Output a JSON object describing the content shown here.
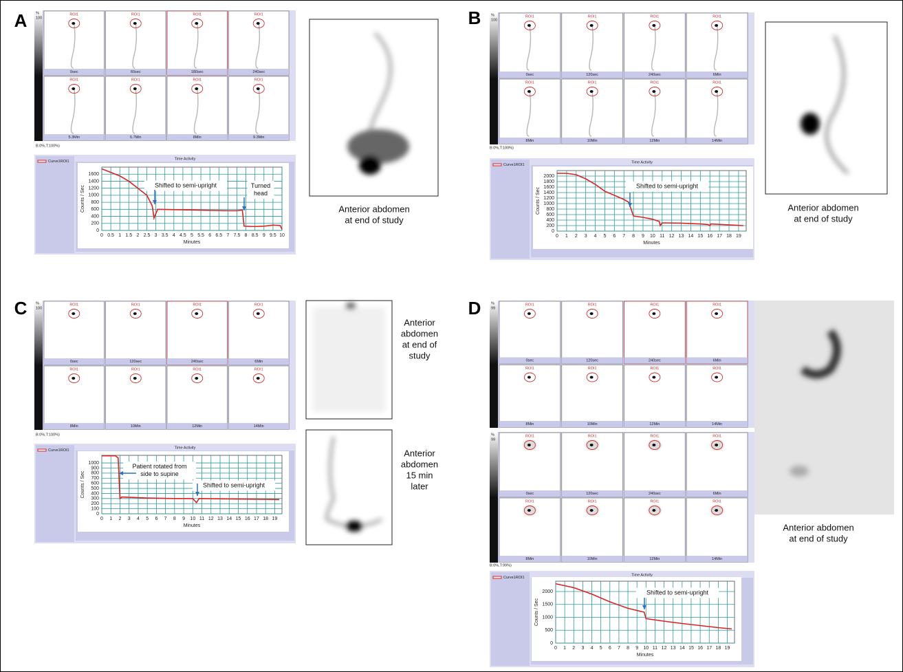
{
  "panels": [
    {
      "letter": "A",
      "roi_label": "ROI1",
      "status": "B:0%,T:100%)",
      "grids": [
        {
          "scale": [
            "%",
            "100",
            "0"
          ],
          "frame_labels": [
            "0sec",
            "60sec",
            "180sec",
            "240sec",
            "5.3Min",
            "6.7Min",
            "8Min",
            "9.3Min"
          ]
        }
      ],
      "captions": [
        [
          "Anterior abdomen",
          "at end of study"
        ]
      ]
    },
    {
      "letter": "B",
      "roi_label": "ROI1",
      "status": "B:0%,T:100%)",
      "grids": [
        {
          "scale": [
            "%",
            "100",
            "0"
          ],
          "frame_labels": [
            "0sec",
            "120sec",
            "240sec",
            "6Min",
            "8Min",
            "10Min",
            "12Min",
            "14Min"
          ]
        }
      ],
      "captions": [
        [
          "Anterior abdomen",
          "at end of study"
        ]
      ]
    },
    {
      "letter": "C",
      "roi_label": "ROI1",
      "status": "B:0%,T:100%)",
      "grids": [
        {
          "scale": [
            "%",
            "100",
            "0"
          ],
          "frame_labels": [
            "0sec",
            "120sec",
            "240sec",
            "6Min",
            "8Min",
            "10Min",
            "12Min",
            "14Min"
          ]
        }
      ],
      "captions": [
        [
          "Anterior",
          "abdomen",
          "at end of",
          "study"
        ],
        [
          "Anterior",
          "abdomen",
          "15 min",
          "later"
        ]
      ]
    },
    {
      "letter": "D",
      "roi_label": "ROI1",
      "status": "B:0%,T:99%)",
      "grids": [
        {
          "scale": [
            "%",
            "99",
            "0"
          ],
          "frame_labels": [
            "0sec",
            "120sec",
            "240sec",
            "6Min",
            "8Min",
            "10Min",
            "12Min",
            "14Min"
          ]
        },
        {
          "scale": [
            "%",
            "99",
            "0"
          ],
          "frame_labels": [
            "0sec",
            "120sec",
            "240sec",
            "6Min",
            "8Min",
            "10Min",
            "12Min",
            "14Min"
          ]
        }
      ],
      "captions": [
        [
          "Anterior abdomen",
          "at end of study"
        ]
      ]
    }
  ],
  "chart_data": [
    {
      "type": "line",
      "title": "Time Activity",
      "xlabel": "Minutes",
      "ylabel": "Counts / Sec",
      "x": [
        0,
        0.5,
        1,
        1.5,
        2,
        2.5,
        2.8,
        2.9,
        3.1,
        4,
        5,
        6,
        7,
        7.5,
        7.8,
        7.9,
        8.5,
        9,
        9.5,
        9.9,
        10
      ],
      "series": [
        {
          "name": "Curve1ROI1",
          "color": "#e02020",
          "values": [
            1750,
            1650,
            1550,
            1400,
            1200,
            1000,
            700,
            350,
            600,
            590,
            580,
            570,
            560,
            560,
            580,
            120,
            110,
            120,
            150,
            140,
            30
          ]
        }
      ],
      "xlim": [
        0,
        10
      ],
      "xticks": [
        0,
        0.5,
        1,
        1.5,
        2,
        2.5,
        3,
        3.5,
        4,
        4.5,
        5,
        5.5,
        6,
        6.5,
        7,
        7.5,
        8,
        8.5,
        9,
        9.5,
        10
      ],
      "ylim": [
        0,
        1800
      ],
      "yticks": [
        0,
        200,
        400,
        600,
        800,
        1000,
        1200,
        1400,
        1600
      ],
      "grid": true,
      "annotations": [
        [
          "Shifted to semi-upright"
        ],
        [
          "Turned",
          "head"
        ]
      ]
    },
    {
      "type": "line",
      "title": "Time Activity",
      "xlabel": "Minutes",
      "ylabel": "Counts / Sec",
      "x": [
        0,
        1,
        2,
        3,
        4,
        5,
        6,
        7,
        7.5,
        8,
        9,
        10,
        10.7,
        10.8,
        11,
        13,
        15,
        15.8,
        16,
        16.1,
        19.5
      ],
      "series": [
        {
          "name": "Curve1ROI1",
          "color": "#e02020",
          "values": [
            2100,
            2100,
            2050,
            1900,
            1700,
            1450,
            1300,
            1150,
            1050,
            550,
            500,
            430,
            350,
            200,
            300,
            290,
            260,
            240,
            200,
            260,
            200
          ]
        }
      ],
      "xlim": [
        0,
        19.8
      ],
      "xticks": [
        0,
        1,
        2,
        3,
        4,
        5,
        6,
        7,
        8,
        9,
        10,
        11,
        12,
        13,
        14,
        15,
        16,
        17,
        18,
        19
      ],
      "ylim": [
        0,
        2200
      ],
      "yticks": [
        0,
        200,
        400,
        600,
        800,
        1000,
        1200,
        1400,
        1600,
        1800,
        2000
      ],
      "grid": true,
      "annotations": [
        [
          "Shifted to semi-upright"
        ]
      ]
    },
    {
      "type": "line",
      "title": "Time Activity",
      "xlabel": "Minutes",
      "ylabel": "Counts / Sec",
      "x": [
        0,
        1.5,
        1.8,
        2,
        2.2,
        5,
        8,
        10,
        10.4,
        10.7,
        15,
        19.5
      ],
      "series": [
        {
          "name": "Curve1ROI1",
          "color": "#e02020",
          "values": [
            1140,
            1140,
            1100,
            300,
            330,
            310,
            300,
            300,
            220,
            300,
            290,
            280
          ]
        }
      ],
      "xlim": [
        0,
        19.8
      ],
      "xticks": [
        0,
        1,
        2,
        3,
        4,
        5,
        6,
        7,
        8,
        9,
        10,
        11,
        12,
        13,
        14,
        15,
        16,
        17,
        18,
        19
      ],
      "ylim": [
        0,
        1150
      ],
      "yticks": [
        0,
        100,
        200,
        300,
        400,
        500,
        600,
        700,
        800,
        900,
        1000
      ],
      "grid": true,
      "annotations": [
        [
          "Patient rotated from",
          "side to supine"
        ],
        [
          "Shifted to semi-upright"
        ]
      ]
    },
    {
      "type": "line",
      "title": "Time Activity",
      "xlabel": "Minutes",
      "ylabel": "Counts / Sec",
      "x": [
        0,
        2,
        4,
        6,
        8,
        9.8,
        10,
        12,
        14,
        16,
        18,
        19.5
      ],
      "series": [
        {
          "name": "Curve1ROI1",
          "color": "#e02020",
          "values": [
            2300,
            2150,
            1900,
            1600,
            1350,
            1200,
            950,
            850,
            760,
            680,
            600,
            550
          ]
        }
      ],
      "xlim": [
        0,
        19.8
      ],
      "xticks": [
        0,
        1,
        2,
        3,
        4,
        5,
        6,
        7,
        8,
        9,
        10,
        11,
        12,
        13,
        14,
        15,
        16,
        17,
        18,
        19
      ],
      "ylim": [
        0,
        2400
      ],
      "yticks": [
        0,
        500,
        1000,
        1500,
        2000
      ],
      "grid": true,
      "annotations": [
        [
          "Shifted to semi-upright"
        ]
      ]
    }
  ]
}
